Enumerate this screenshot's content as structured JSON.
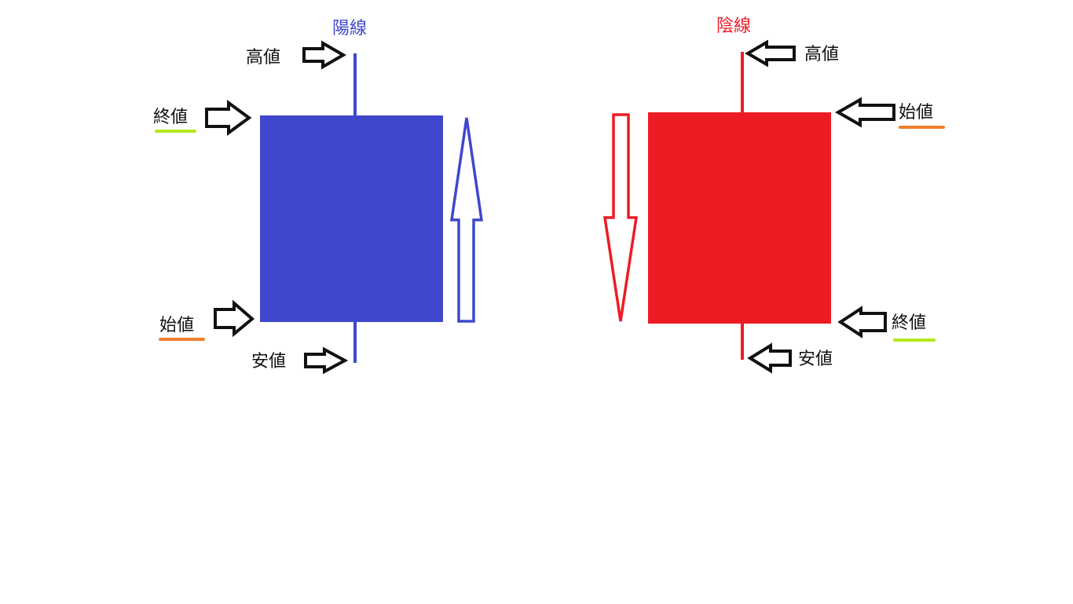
{
  "bullish": {
    "title": "陽線",
    "color": "#3f48cc",
    "labels": {
      "high": "高値",
      "close": "終値",
      "open": "始値",
      "low": "安値"
    },
    "direction": "up"
  },
  "bearish": {
    "title": "陰線",
    "color": "#ed1c24",
    "labels": {
      "high": "高値",
      "open": "始値",
      "close": "終値",
      "low": "安値"
    },
    "direction": "down"
  },
  "underline_colors": {
    "close": "#b5e61d",
    "open": "#f07f2a"
  }
}
